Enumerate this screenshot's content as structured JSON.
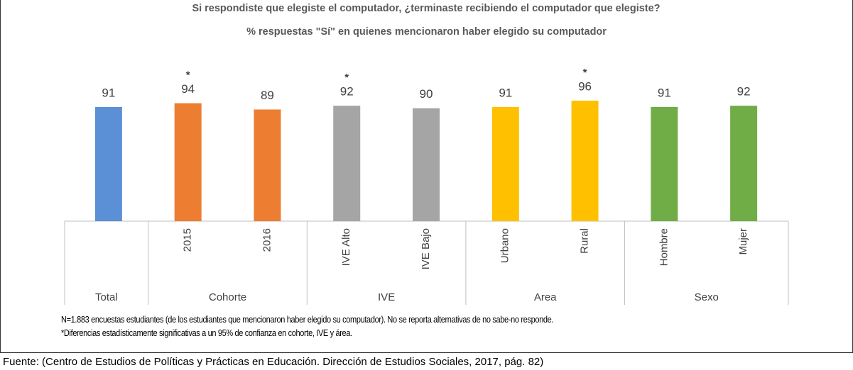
{
  "chart_data": {
    "type": "bar",
    "title": "Si respondiste que elegiste el computador, ¿terminaste recibiendo el computador que elegiste?",
    "subtitle": "% respuestas \"Sí\" en quienes mencionaron haber elegido su computador",
    "categories": [
      null,
      "2015",
      "2016",
      "IVE Alto",
      "IVE Bajo",
      "Urbano",
      "Rural",
      "Hombre",
      "Mujer"
    ],
    "groups": [
      "Total",
      "Cohorte",
      "IVE",
      "Area",
      "Sexo"
    ],
    "category_groups": [
      0,
      1,
      1,
      2,
      2,
      3,
      3,
      4,
      4
    ],
    "values": [
      91,
      94,
      89,
      92,
      90,
      91,
      96,
      91,
      92
    ],
    "annotations": [
      null,
      "*",
      null,
      "*",
      null,
      null,
      "*",
      null,
      null
    ],
    "colors": [
      "#5b8fd6",
      "#ed7d31",
      "#ed7d31",
      "#a5a5a5",
      "#a5a5a5",
      "#ffc000",
      "#ffc000",
      "#70ad47",
      "#70ad47"
    ],
    "ylim": [
      0,
      100
    ],
    "notes": [
      "N=1.883 encuestas estudiantes (de los estudiantes que mencionaron haber elegido su computador). No se reporta alternativas de no sabe-no responde.",
      "*Diferencias estadísticamente significativas a un 95% de confianza en cohorte, IVE y área."
    ]
  },
  "source": "Fuente: (Centro de Estudios de Políticas y Prácticas en Educación. Dirección de Estudios Sociales, 2017, pág. 82)"
}
